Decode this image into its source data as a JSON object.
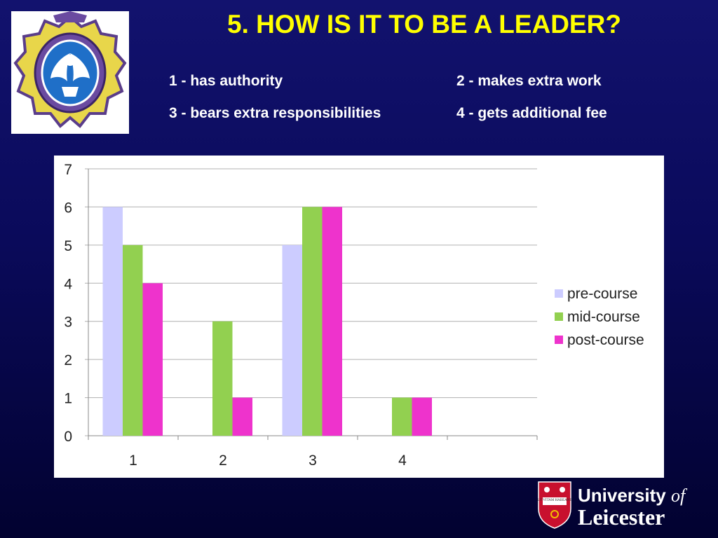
{
  "slide": {
    "title": "5. HOW IS IT TO BE A LEADER?",
    "key": [
      "1 - has authority",
      "2 - makes extra work",
      "3 - bears extra responsibilities",
      "4 - gets additional fee"
    ]
  },
  "logo": {
    "line1": "University",
    "line1_italic": "of",
    "line2": "Leicester",
    "motto": "UT VITAM HABEANT"
  },
  "colors": {
    "background": "#0a0a5a",
    "title": "#ffff00",
    "pre_course": "#ccccff",
    "mid_course": "#92d050",
    "post_course": "#ee33cc"
  },
  "chart_data": {
    "type": "bar",
    "categories": [
      "1",
      "2",
      "3",
      "4"
    ],
    "series": [
      {
        "name": "pre-course",
        "values": [
          6,
          0,
          5,
          0
        ]
      },
      {
        "name": "mid-course",
        "values": [
          5,
          3,
          6,
          1
        ]
      },
      {
        "name": "post-course",
        "values": [
          4,
          1,
          6,
          1
        ]
      }
    ],
    "yticks": [
      "0",
      "1",
      "2",
      "3",
      "4",
      "5",
      "6",
      "7"
    ],
    "ylim": [
      0,
      7
    ],
    "grid": true,
    "legend": "right"
  }
}
